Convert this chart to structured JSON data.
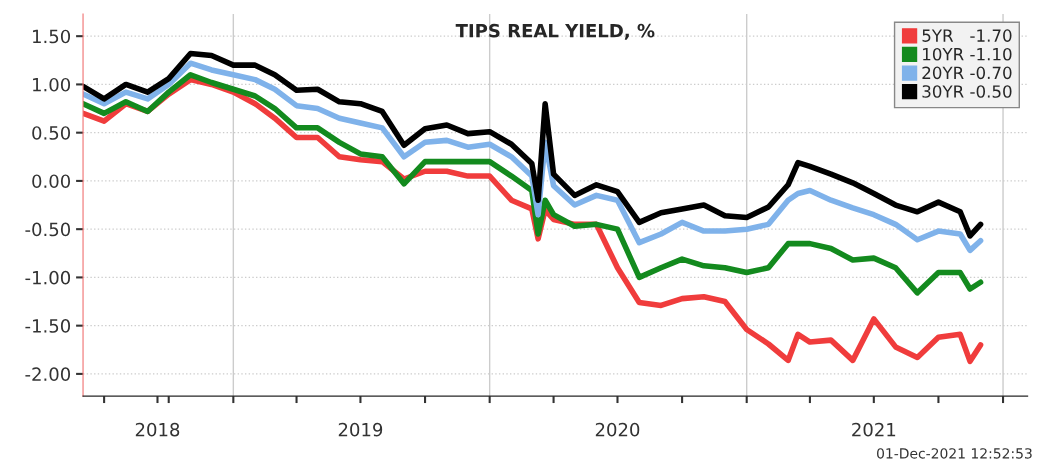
{
  "chart_data": {
    "type": "line",
    "title": "TIPS REAL YIELD, %",
    "x": [
      "2018-06-01",
      "2018-07-01",
      "2018-08-01",
      "2018-09-01",
      "2018-10-01",
      "2018-11-01",
      "2018-12-01",
      "2019-01-01",
      "2019-02-01",
      "2019-03-01",
      "2019-04-01",
      "2019-05-01",
      "2019-06-01",
      "2019-07-01",
      "2019-08-01",
      "2019-09-01",
      "2019-10-01",
      "2019-11-01",
      "2019-12-01",
      "2020-01-01",
      "2020-02-01",
      "2020-03-01",
      "2020-03-10",
      "2020-03-20",
      "2020-04-01",
      "2020-05-01",
      "2020-06-01",
      "2020-07-01",
      "2020-08-01",
      "2020-09-01",
      "2020-10-01",
      "2020-11-01",
      "2020-12-01",
      "2021-01-01",
      "2021-02-01",
      "2021-03-01",
      "2021-03-15",
      "2021-04-01",
      "2021-05-01",
      "2021-06-01",
      "2021-07-01",
      "2021-08-01",
      "2021-09-01",
      "2021-10-01",
      "2021-11-01",
      "2021-11-15",
      "2021-11-30"
    ],
    "series": [
      {
        "name": "5YR   -1.70",
        "color": "#f03c3c",
        "values": [
          0.7,
          0.62,
          0.8,
          0.72,
          0.9,
          1.05,
          1.0,
          0.92,
          0.8,
          0.65,
          0.45,
          0.45,
          0.25,
          0.22,
          0.2,
          0.02,
          0.1,
          0.1,
          0.05,
          0.05,
          -0.2,
          -0.29,
          -0.6,
          -0.3,
          -0.4,
          -0.45,
          -0.45,
          -0.9,
          -1.26,
          -1.29,
          -1.22,
          -1.2,
          -1.25,
          -1.54,
          -1.69,
          -1.86,
          -1.59,
          -1.67,
          -1.65,
          -1.86,
          -1.43,
          -1.72,
          -1.83,
          -1.62,
          -1.59,
          -1.87,
          -1.7
        ]
      },
      {
        "name": "10YR -1.10",
        "color": "#138a1e",
        "values": [
          0.8,
          0.7,
          0.82,
          0.72,
          0.92,
          1.1,
          1.02,
          0.95,
          0.88,
          0.75,
          0.55,
          0.55,
          0.4,
          0.28,
          0.25,
          -0.03,
          0.2,
          0.2,
          0.2,
          0.2,
          0.05,
          -0.1,
          -0.55,
          -0.2,
          -0.35,
          -0.47,
          -0.45,
          -0.5,
          -1.0,
          -0.9,
          -0.81,
          -0.88,
          -0.9,
          -0.95,
          -0.9,
          -0.65,
          -0.65,
          -0.65,
          -0.7,
          -0.82,
          -0.8,
          -0.9,
          -1.16,
          -0.95,
          -0.95,
          -1.12,
          -1.05
        ]
      },
      {
        "name": "20YR -0.70",
        "color": "#7fb2ea",
        "values": [
          0.9,
          0.8,
          0.92,
          0.85,
          1.0,
          1.22,
          1.15,
          1.1,
          1.05,
          0.95,
          0.78,
          0.75,
          0.65,
          0.6,
          0.55,
          0.25,
          0.4,
          0.42,
          0.35,
          0.38,
          0.25,
          0.05,
          -0.35,
          0.4,
          -0.05,
          -0.25,
          -0.15,
          -0.2,
          -0.64,
          -0.55,
          -0.43,
          -0.52,
          -0.52,
          -0.5,
          -0.45,
          -0.2,
          -0.13,
          -0.1,
          -0.2,
          -0.28,
          -0.35,
          -0.45,
          -0.61,
          -0.52,
          -0.55,
          -0.72,
          -0.62
        ]
      },
      {
        "name": "30YR -0.50",
        "color": "#000000",
        "values": [
          0.98,
          0.85,
          1.0,
          0.92,
          1.06,
          1.32,
          1.3,
          1.2,
          1.2,
          1.1,
          0.94,
          0.95,
          0.82,
          0.8,
          0.72,
          0.37,
          0.54,
          0.58,
          0.49,
          0.51,
          0.38,
          0.18,
          -0.2,
          0.8,
          0.07,
          -0.15,
          -0.04,
          -0.11,
          -0.43,
          -0.33,
          -0.29,
          -0.25,
          -0.36,
          -0.38,
          -0.27,
          -0.04,
          0.19,
          0.15,
          0.07,
          -0.02,
          -0.13,
          -0.25,
          -0.32,
          -0.22,
          -0.32,
          -0.57,
          -0.45
        ]
      }
    ],
    "xlim": [
      "2018-06-01",
      "2022-02-05"
    ],
    "ylim": [
      -2.23,
      1.73
    ],
    "yticks": [
      {
        "value": 1.5,
        "label": "1.50"
      },
      {
        "value": 1.0,
        "label": "1.00"
      },
      {
        "value": 0.5,
        "label": "0.50"
      },
      {
        "value": 0.0,
        "label": "0.00"
      },
      {
        "value": -0.5,
        "label": "-0.50"
      },
      {
        "value": -1.0,
        "label": "-1.00"
      },
      {
        "value": -1.5,
        "label": "-1.50"
      },
      {
        "value": -2.0,
        "label": "-2.00"
      }
    ],
    "xticks": [
      {
        "value": "2018-07-01",
        "label": null
      },
      {
        "value": "2018-09-15",
        "label": "2018"
      },
      {
        "value": "2018-10-01",
        "label": null
      },
      {
        "value": "2019-01-01",
        "label": null
      },
      {
        "value": "2019-04-01",
        "label": null
      },
      {
        "value": "2019-07-01",
        "label": "2019"
      },
      {
        "value": "2019-10-01",
        "label": null
      },
      {
        "value": "2020-01-01",
        "label": null
      },
      {
        "value": "2020-04-01",
        "label": null
      },
      {
        "value": "2020-07-01",
        "label": "2020"
      },
      {
        "value": "2020-10-01",
        "label": null
      },
      {
        "value": "2021-01-01",
        "label": null
      },
      {
        "value": "2021-04-01",
        "label": null
      },
      {
        "value": "2021-07-01",
        "label": "2021"
      },
      {
        "value": "2021-10-01",
        "label": null
      },
      {
        "value": "2022-01-01",
        "label": null
      }
    ],
    "ref_lines": [
      {
        "axis": "x",
        "value": "2019-01-01",
        "color": "#cccccc"
      },
      {
        "axis": "x",
        "value": "2020-01-01",
        "color": "#cccccc"
      },
      {
        "axis": "x",
        "value": "2021-01-01",
        "color": "#cccccc"
      },
      {
        "axis": "x",
        "value": "2022-01-01",
        "color": "#cccccc"
      }
    ],
    "grid": "y",
    "legend": "top right",
    "line_style": "solid",
    "marker": "none",
    "annotations": [
      "01-Dec-2021 12:52:53"
    ]
  }
}
